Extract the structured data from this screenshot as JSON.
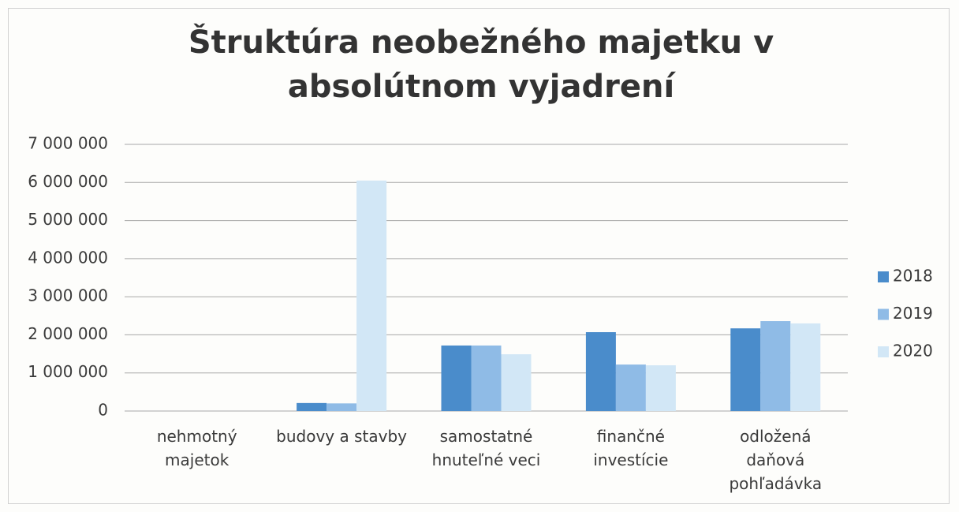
{
  "chart_data": {
    "type": "bar",
    "title": "Štruktúra neobežného majetku v absolútnom vyjadrení",
    "categories": [
      "nehmotný majetok",
      "budovy a stavby",
      "samostatné hnuteľné veci",
      "finančné investície",
      "odložená daňová pohľadávka"
    ],
    "series": [
      {
        "name": "2018",
        "color": "#4a8ccb",
        "values": [
          0,
          210000,
          1720000,
          2070000,
          2170000
        ]
      },
      {
        "name": "2019",
        "color": "#8fbbe6",
        "values": [
          0,
          200000,
          1720000,
          1220000,
          2360000
        ]
      },
      {
        "name": "2020",
        "color": "#d2e7f6",
        "values": [
          0,
          6050000,
          1490000,
          1200000,
          2300000
        ]
      }
    ],
    "ylim": [
      0,
      7000000
    ],
    "yticks": [
      {
        "value": 0,
        "label": "0"
      },
      {
        "value": 1000000,
        "label": "1 000 000"
      },
      {
        "value": 2000000,
        "label": "2 000 000"
      },
      {
        "value": 3000000,
        "label": "3 000 000"
      },
      {
        "value": 4000000,
        "label": "4 000 000"
      },
      {
        "value": 5000000,
        "label": "5 000 000"
      },
      {
        "value": 6000000,
        "label": "6 000 000"
      },
      {
        "value": 7000000,
        "label": "7 000 000"
      }
    ],
    "grid": true,
    "legend": "right"
  }
}
